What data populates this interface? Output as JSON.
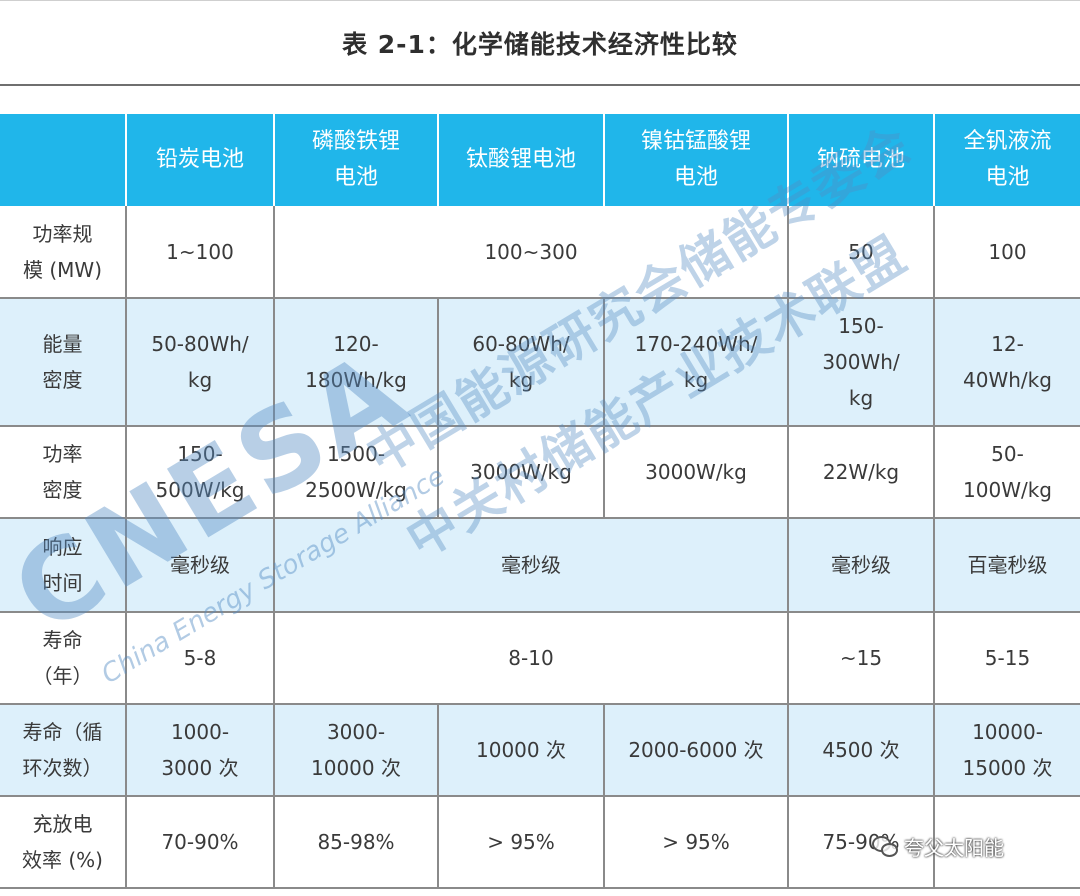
{
  "caption": "表 2-1：化学储能技术经济性比较",
  "headers": [
    "",
    "铅炭电池",
    "磷酸铁锂\n电池",
    "钛酸锂电池",
    "镍钴锰酸锂\n电池",
    "钠硫电池",
    "全钒液流\n电池"
  ],
  "rows": [
    {
      "label": "功率规\n模 (MW)",
      "shaded": false,
      "cells": [
        {
          "text": "1~100",
          "span": 1
        },
        {
          "text": "100~300",
          "span": 3
        },
        {
          "text": "50",
          "span": 1
        },
        {
          "text": "100",
          "span": 1
        }
      ]
    },
    {
      "label": "能量\n密度",
      "shaded": true,
      "cells": [
        {
          "text": "50-80Wh/\nkg",
          "span": 1
        },
        {
          "text": "120-\n180Wh/kg",
          "span": 1
        },
        {
          "text": "60-80Wh/\nkg",
          "span": 1
        },
        {
          "text": "170-240Wh/\nkg",
          "span": 1
        },
        {
          "text": "150-\n300Wh/\nkg",
          "span": 1
        },
        {
          "text": "12-\n40Wh/kg",
          "span": 1
        }
      ]
    },
    {
      "label": "功率\n密度",
      "shaded": false,
      "cells": [
        {
          "text": "150-\n500W/kg",
          "span": 1
        },
        {
          "text": "1500-\n2500W/kg",
          "span": 1
        },
        {
          "text": "3000W/kg",
          "span": 1
        },
        {
          "text": "3000W/kg",
          "span": 1
        },
        {
          "text": "22W/kg",
          "span": 1
        },
        {
          "text": "50-\n100W/kg",
          "span": 1
        }
      ]
    },
    {
      "label": "响应\n时间",
      "shaded": true,
      "cells": [
        {
          "text": "毫秒级",
          "span": 1
        },
        {
          "text": "毫秒级",
          "span": 3
        },
        {
          "text": "毫秒级",
          "span": 1
        },
        {
          "text": "百毫秒级",
          "span": 1
        }
      ]
    },
    {
      "label": "寿命\n（年）",
      "shaded": false,
      "cells": [
        {
          "text": "5-8",
          "span": 1
        },
        {
          "text": "8-10",
          "span": 3
        },
        {
          "text": "~15",
          "span": 1
        },
        {
          "text": "5-15",
          "span": 1
        }
      ]
    },
    {
      "label": "寿命（循\n环次数）",
      "shaded": true,
      "cells": [
        {
          "text": "1000-\n3000 次",
          "span": 1
        },
        {
          "text": "3000-\n10000 次",
          "span": 1
        },
        {
          "text": "10000 次",
          "span": 1
        },
        {
          "text": "2000-6000 次",
          "span": 1
        },
        {
          "text": "4500 次",
          "span": 1
        },
        {
          "text": "10000-\n15000 次",
          "span": 1
        }
      ]
    },
    {
      "label": "充放电\n效率 (%)",
      "shaded": false,
      "cells": [
        {
          "text": "70-90%",
          "span": 1
        },
        {
          "text": "85-98%",
          "span": 1
        },
        {
          "text": "> 95%",
          "span": 1
        },
        {
          "text": "> 95%",
          "span": 1
        },
        {
          "text": "75-90%",
          "span": 1
        },
        {
          "text": "",
          "span": 1
        }
      ]
    }
  ],
  "watermark": {
    "logo": "CNESA",
    "english": "China Energy Storage Alliance",
    "cn_line1": "中国能源研究会储能专委会",
    "cn_line2": "中关村储能产业技术联盟"
  },
  "source_tag": "夸父太阳能",
  "colors": {
    "header_bg": "#20b6ea",
    "shaded_row": "#ddf0fb",
    "watermark": "#558cc3"
  }
}
